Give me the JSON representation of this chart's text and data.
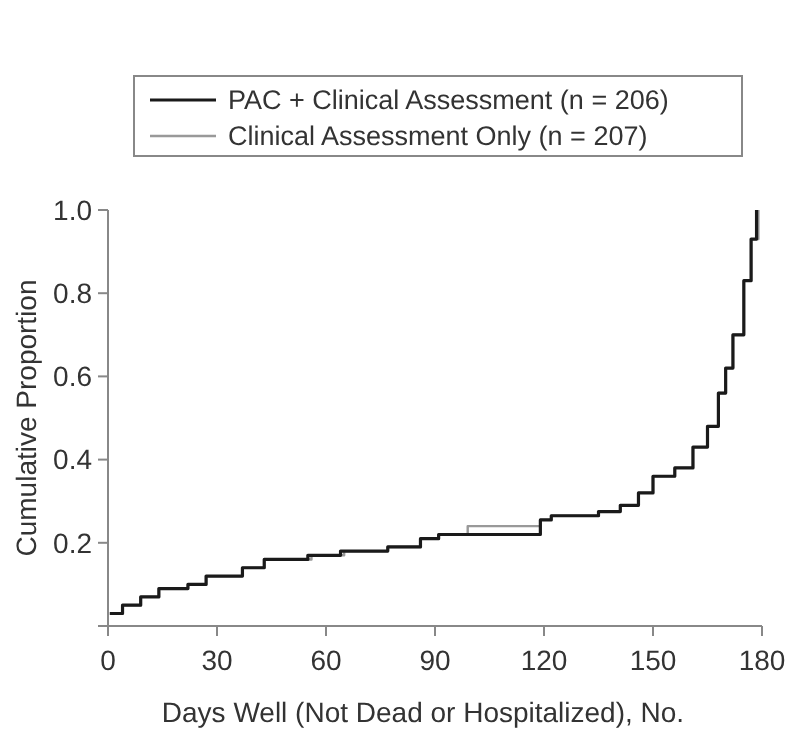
{
  "chart_data": {
    "type": "step",
    "xlabel": "Days Well (Not Dead or Hospitalized), No.",
    "ylabel": "Cumulative Proportion",
    "xlim": [
      0,
      180
    ],
    "ylim": [
      0,
      1.0
    ],
    "xticks": [
      0,
      30,
      60,
      90,
      120,
      150,
      180
    ],
    "yticks": [
      {
        "value": 0,
        "label": null
      },
      0.2,
      0.4,
      0.6,
      0.8,
      {
        "value": 1.0,
        "label": "1.0"
      }
    ],
    "legend": "top",
    "grid": false,
    "marker": "none",
    "line_style": "solid",
    "series": [
      {
        "name": "PAC + Clinical Assessment (n = 206)",
        "color": "#1a1a1a",
        "x": [
          0.5,
          4,
          9,
          14,
          22,
          27,
          37,
          43,
          53,
          55,
          64,
          77,
          86,
          91,
          119,
          122,
          132,
          135,
          141,
          146,
          150,
          156,
          161,
          165,
          168,
          170,
          172,
          175,
          177,
          178.5
        ],
        "values": [
          0.03,
          0.05,
          0.07,
          0.09,
          0.1,
          0.12,
          0.14,
          0.16,
          0.16,
          0.17,
          0.18,
          0.19,
          0.21,
          0.22,
          0.255,
          0.265,
          0.265,
          0.275,
          0.29,
          0.32,
          0.36,
          0.38,
          0.43,
          0.48,
          0.56,
          0.62,
          0.7,
          0.83,
          0.93,
          1.0
        ]
      },
      {
        "name": "Clinical Assessment Only (n = 207)",
        "color": "#999999",
        "x": [
          0.5,
          4,
          9,
          14,
          22,
          27,
          37,
          43,
          53,
          56,
          65,
          77,
          86,
          91,
          99,
          119,
          122,
          132,
          135,
          141,
          146,
          150,
          156,
          161,
          165,
          168,
          170,
          172,
          175,
          177,
          179
        ],
        "values": [
          0.03,
          0.05,
          0.07,
          0.09,
          0.1,
          0.12,
          0.14,
          0.16,
          0.16,
          0.17,
          0.18,
          0.19,
          0.21,
          0.22,
          0.24,
          0.255,
          0.265,
          0.265,
          0.275,
          0.29,
          0.32,
          0.36,
          0.38,
          0.43,
          0.48,
          0.56,
          0.62,
          0.7,
          0.83,
          0.93,
          1.0
        ]
      }
    ]
  }
}
